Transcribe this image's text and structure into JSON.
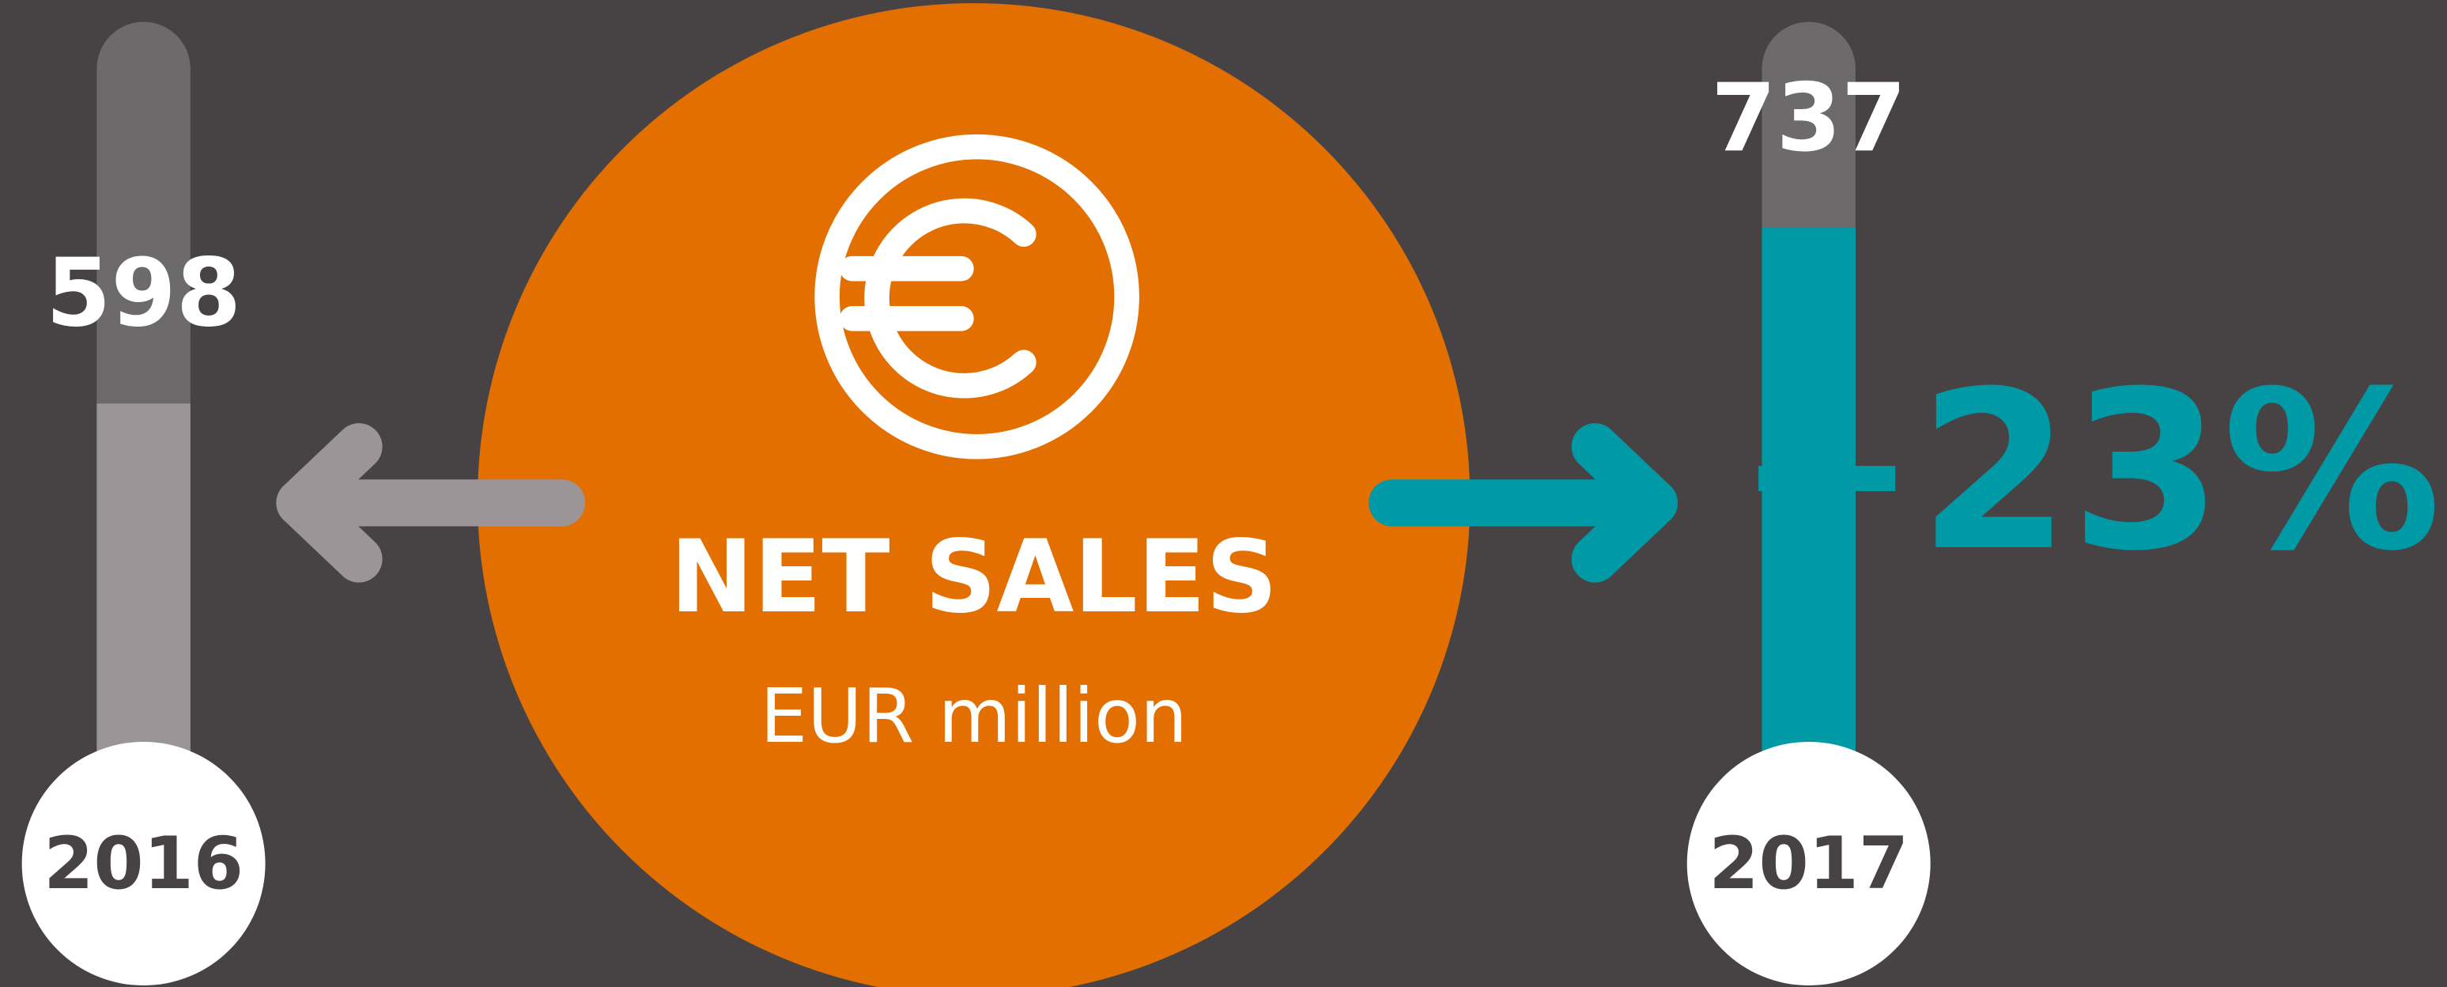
{
  "chart_data": {
    "type": "bar",
    "title": "NET SALES",
    "subtitle": "EUR million",
    "annotation": "+23%",
    "categories": [
      "2016",
      "2017"
    ],
    "values": [
      598,
      737
    ],
    "colors": [
      "#9b9597",
      "#009aa6"
    ],
    "ylim": [
      250,
      900
    ]
  }
}
